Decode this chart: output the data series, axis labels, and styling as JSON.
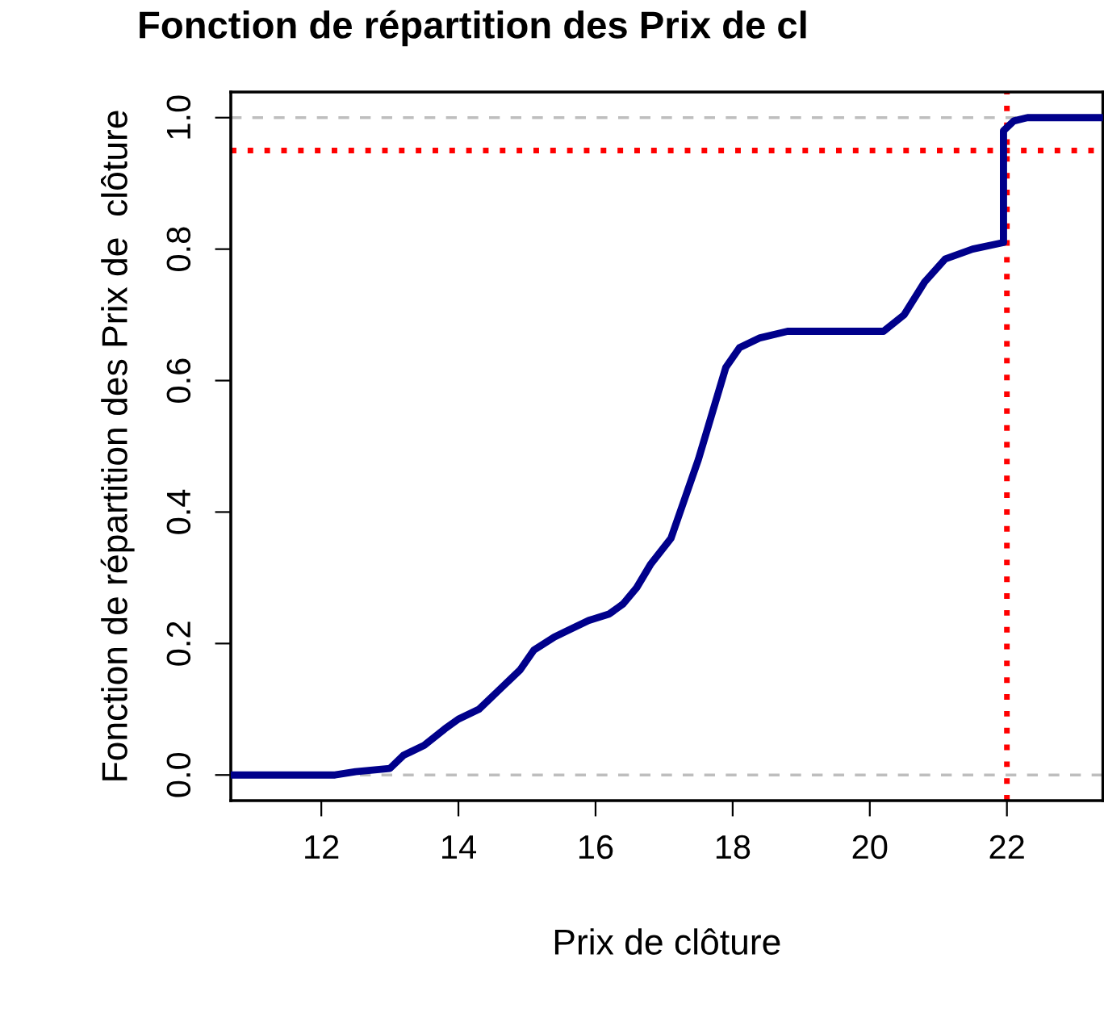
{
  "chart_data": {
    "type": "line",
    "title": "Fonction de répartition des Prix de cl",
    "xlabel": "Prix de clôture",
    "ylabel": "Fonction de répartition des Prix de  clôture",
    "series": [
      {
        "color": "#00008b",
        "x": [
          10.68,
          12.2,
          12.5,
          13.0,
          13.2,
          13.5,
          13.8,
          14.0,
          14.3,
          14.6,
          14.9,
          15.1,
          15.4,
          15.6,
          15.9,
          16.2,
          16.4,
          16.6,
          16.8,
          17.1,
          17.3,
          17.5,
          17.7,
          17.9,
          18.1,
          18.4,
          18.8,
          20.2,
          20.5,
          20.8,
          21.1,
          21.5,
          21.95,
          21.95,
          21.95,
          22.1,
          22.3,
          23.4
        ],
        "values": [
          0,
          0,
          0.005,
          0.01,
          0.03,
          0.045,
          0.07,
          0.085,
          0.1,
          0.13,
          0.16,
          0.19,
          0.21,
          0.22,
          0.235,
          0.245,
          0.26,
          0.285,
          0.32,
          0.36,
          0.42,
          0.48,
          0.55,
          0.62,
          0.65,
          0.665,
          0.675,
          0.675,
          0.7,
          0.75,
          0.785,
          0.8,
          0.81,
          0.87,
          0.98,
          0.995,
          1.0,
          1.0
        ]
      }
    ],
    "xlim": [
      10.68,
      23.4
    ],
    "ylim": [
      -0.039,
      1.039
    ],
    "xticks": [
      12,
      14,
      16,
      18,
      20,
      22
    ],
    "yticks": [
      {
        "value": 0,
        "label": "0.0"
      },
      {
        "value": 0.2,
        "label": "0.2"
      },
      {
        "value": 0.4,
        "label": "0.4"
      },
      {
        "value": 0.6,
        "label": "0.6"
      },
      {
        "value": 0.8,
        "label": "0.8"
      },
      {
        "value": 1.0,
        "label": "1.0"
      }
    ],
    "ref_lines": [
      {
        "axis": "y",
        "value": 0,
        "color": "#bebebe",
        "line_style": "dashed"
      },
      {
        "axis": "y",
        "value": 1,
        "color": "#bebebe",
        "line_style": "dashed"
      },
      {
        "axis": "y",
        "value": 0.95,
        "color": "#ff0000",
        "line_style": "dotted"
      },
      {
        "axis": "x",
        "value": 22,
        "color": "#ff0000",
        "line_style": "dotted"
      }
    ],
    "grid": false,
    "legend": false,
    "line_style": "solid"
  }
}
